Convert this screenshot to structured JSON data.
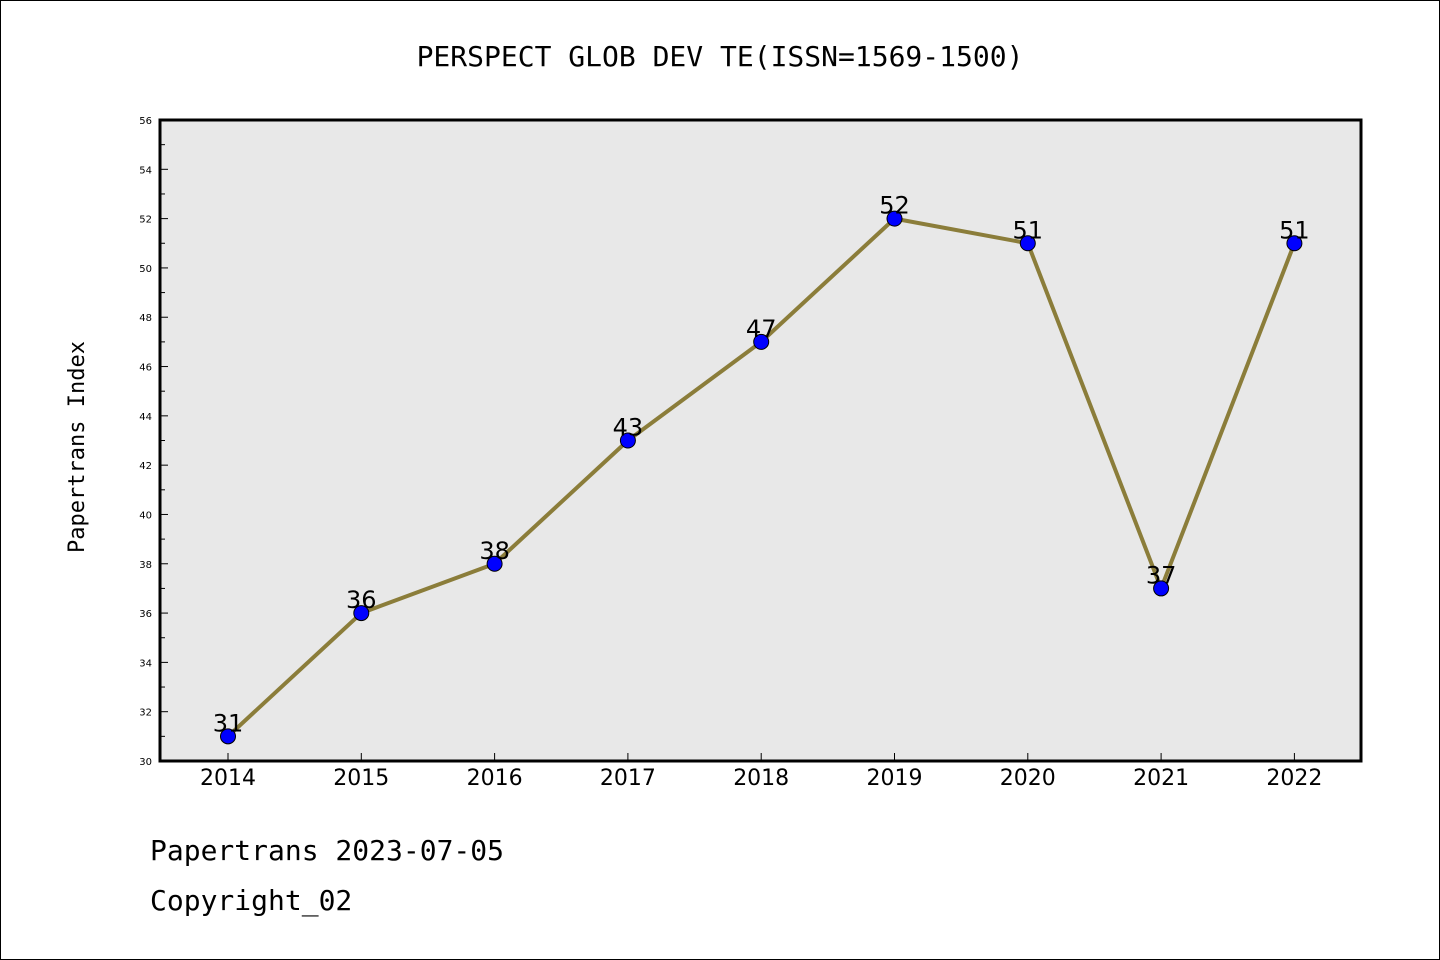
{
  "chart_data": {
    "type": "line",
    "title": "PERSPECT GLOB DEV TE(ISSN=1569-1500)",
    "xlabel": "",
    "ylabel": "Papertrans Index",
    "categories": [
      "2014",
      "2015",
      "2016",
      "2017",
      "2018",
      "2019",
      "2020",
      "2021",
      "2022"
    ],
    "series": [
      {
        "values": [
          31,
          36,
          38,
          43,
          47,
          52,
          51,
          37,
          51
        ]
      }
    ],
    "data_labels": [
      "31",
      "36",
      "38",
      "43",
      "47",
      "52",
      "51",
      "37",
      "51"
    ],
    "ylim": [
      30,
      56
    ],
    "yticks": [
      30,
      32,
      34,
      36,
      38,
      40,
      42,
      44,
      46,
      48,
      50,
      52,
      54,
      56
    ],
    "grid": false,
    "colors": {
      "line": "#8B7D3A",
      "marker": "#0000FF",
      "plot_background": "#E8E8E8"
    }
  },
  "footer": {
    "line1": "Papertrans 2023-07-05",
    "line2": "Copyright_02"
  }
}
